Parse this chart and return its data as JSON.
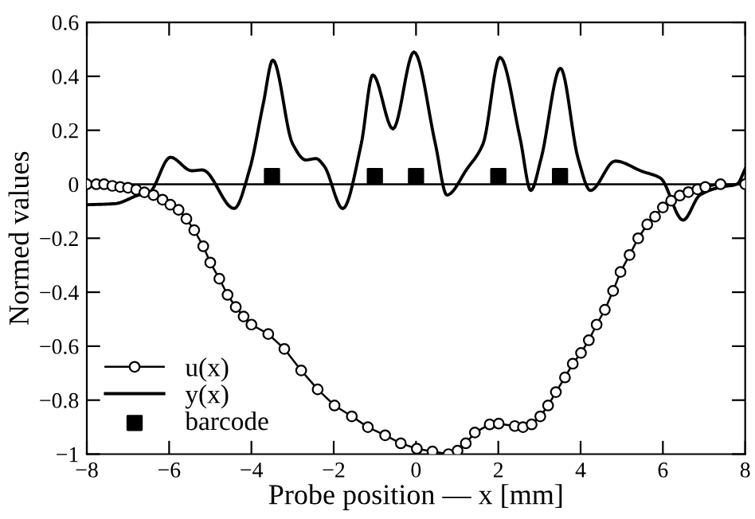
{
  "chart_data": {
    "type": "line",
    "xlabel": "Probe position — x [mm]",
    "ylabel": "Normed values",
    "xlim": [
      -8,
      8
    ],
    "ylim": [
      -1,
      0.6
    ],
    "xticks": [
      {
        "value": -8,
        "label": "−8"
      },
      {
        "value": -6,
        "label": "−6"
      },
      {
        "value": -4,
        "label": "−4"
      },
      {
        "value": -2,
        "label": "−2"
      },
      0,
      2,
      4,
      6,
      8
    ],
    "yticks": [
      {
        "value": -1,
        "label": "−1"
      },
      {
        "value": -0.8,
        "label": "−0.8"
      },
      {
        "value": -0.6,
        "label": "−0.6"
      },
      {
        "value": -0.4,
        "label": "−0.4"
      },
      {
        "value": -0.2,
        "label": "−0.2"
      },
      0,
      0.2,
      0.4,
      0.6
    ],
    "grid": false,
    "legend": "bottom left",
    "ref_lines": [
      {
        "axis": "y",
        "value": 0,
        "color": "#000000"
      }
    ],
    "series": [
      {
        "name": "u(x)",
        "marker": "circle",
        "color": "#000000",
        "x": [
          -8,
          -7.77,
          -7.58,
          -7.38,
          -7.19,
          -7.0,
          -6.8,
          -6.6,
          -6.38,
          -6.16,
          -5.97,
          -5.77,
          -5.58,
          -5.39,
          -5.17,
          -5.0,
          -4.78,
          -4.58,
          -4.38,
          -4.19,
          -4.0,
          -3.59,
          -3.2,
          -2.79,
          -2.39,
          -1.98,
          -1.56,
          -1.17,
          -0.75,
          -0.37,
          0.02,
          0.4,
          0.79,
          1.01,
          1.21,
          1.43,
          1.79,
          2.01,
          2.4,
          2.6,
          2.81,
          3.02,
          3.21,
          3.4,
          3.62,
          3.81,
          4.01,
          4.2,
          4.39,
          4.59,
          4.79,
          4.97,
          5.19,
          5.4,
          5.62,
          5.81,
          6.0,
          6.2,
          6.41,
          6.62,
          6.84,
          7.03,
          7.4,
          8
        ],
        "values": [
          0,
          0,
          0,
          -0.006,
          -0.01,
          -0.013,
          -0.02,
          -0.03,
          -0.04,
          -0.057,
          -0.076,
          -0.095,
          -0.128,
          -0.17,
          -0.23,
          -0.29,
          -0.35,
          -0.41,
          -0.455,
          -0.49,
          -0.52,
          -0.555,
          -0.61,
          -0.69,
          -0.76,
          -0.82,
          -0.86,
          -0.9,
          -0.93,
          -0.96,
          -0.98,
          -0.99,
          -1.0,
          -0.987,
          -0.96,
          -0.92,
          -0.89,
          -0.887,
          -0.896,
          -0.9,
          -0.89,
          -0.86,
          -0.82,
          -0.77,
          -0.716,
          -0.665,
          -0.625,
          -0.578,
          -0.52,
          -0.465,
          -0.395,
          -0.325,
          -0.262,
          -0.2,
          -0.149,
          -0.12,
          -0.086,
          -0.061,
          -0.042,
          -0.029,
          -0.019,
          -0.01,
          0,
          0
        ]
      },
      {
        "name": "y(x)",
        "marker": "none",
        "color": "#000000",
        "x": [
          -8,
          -7.32,
          -6.74,
          -6.48,
          -5.97,
          -5.45,
          -5.19,
          -4.42,
          -4.04,
          -3.71,
          -3.48,
          -3.0,
          -2.68,
          -2.43,
          -2.23,
          -1.78,
          -1.33,
          -1.05,
          -0.56,
          -0.05,
          0.47,
          0.75,
          1.24,
          1.63,
          2.04,
          2.53,
          2.79,
          3.04,
          3.51,
          3.94,
          4.24,
          4.84,
          5.49,
          5.94,
          6.49,
          6.9,
          7.42,
          7.8,
          8
        ],
        "values": [
          -0.076,
          -0.072,
          -0.04,
          -0.03,
          0.1,
          0.05,
          0.053,
          -0.09,
          0.057,
          0.3,
          0.46,
          0.15,
          0.09,
          0.095,
          0.067,
          -0.09,
          0.15,
          0.405,
          0.205,
          0.49,
          0.15,
          -0.04,
          0.057,
          0.15,
          0.47,
          0.17,
          -0.023,
          0.095,
          0.43,
          0.095,
          -0.023,
          0.086,
          0.048,
          0.023,
          -0.133,
          -0.04,
          -0.01,
          0,
          0.057
        ]
      },
      {
        "name": "barcode",
        "type": "scatter",
        "marker": "square",
        "color": "#000000",
        "x": [
          -3.5,
          -1,
          0,
          2,
          3.5
        ],
        "values": [
          0.03,
          0.03,
          0.03,
          0.03,
          0.03
        ]
      }
    ]
  }
}
